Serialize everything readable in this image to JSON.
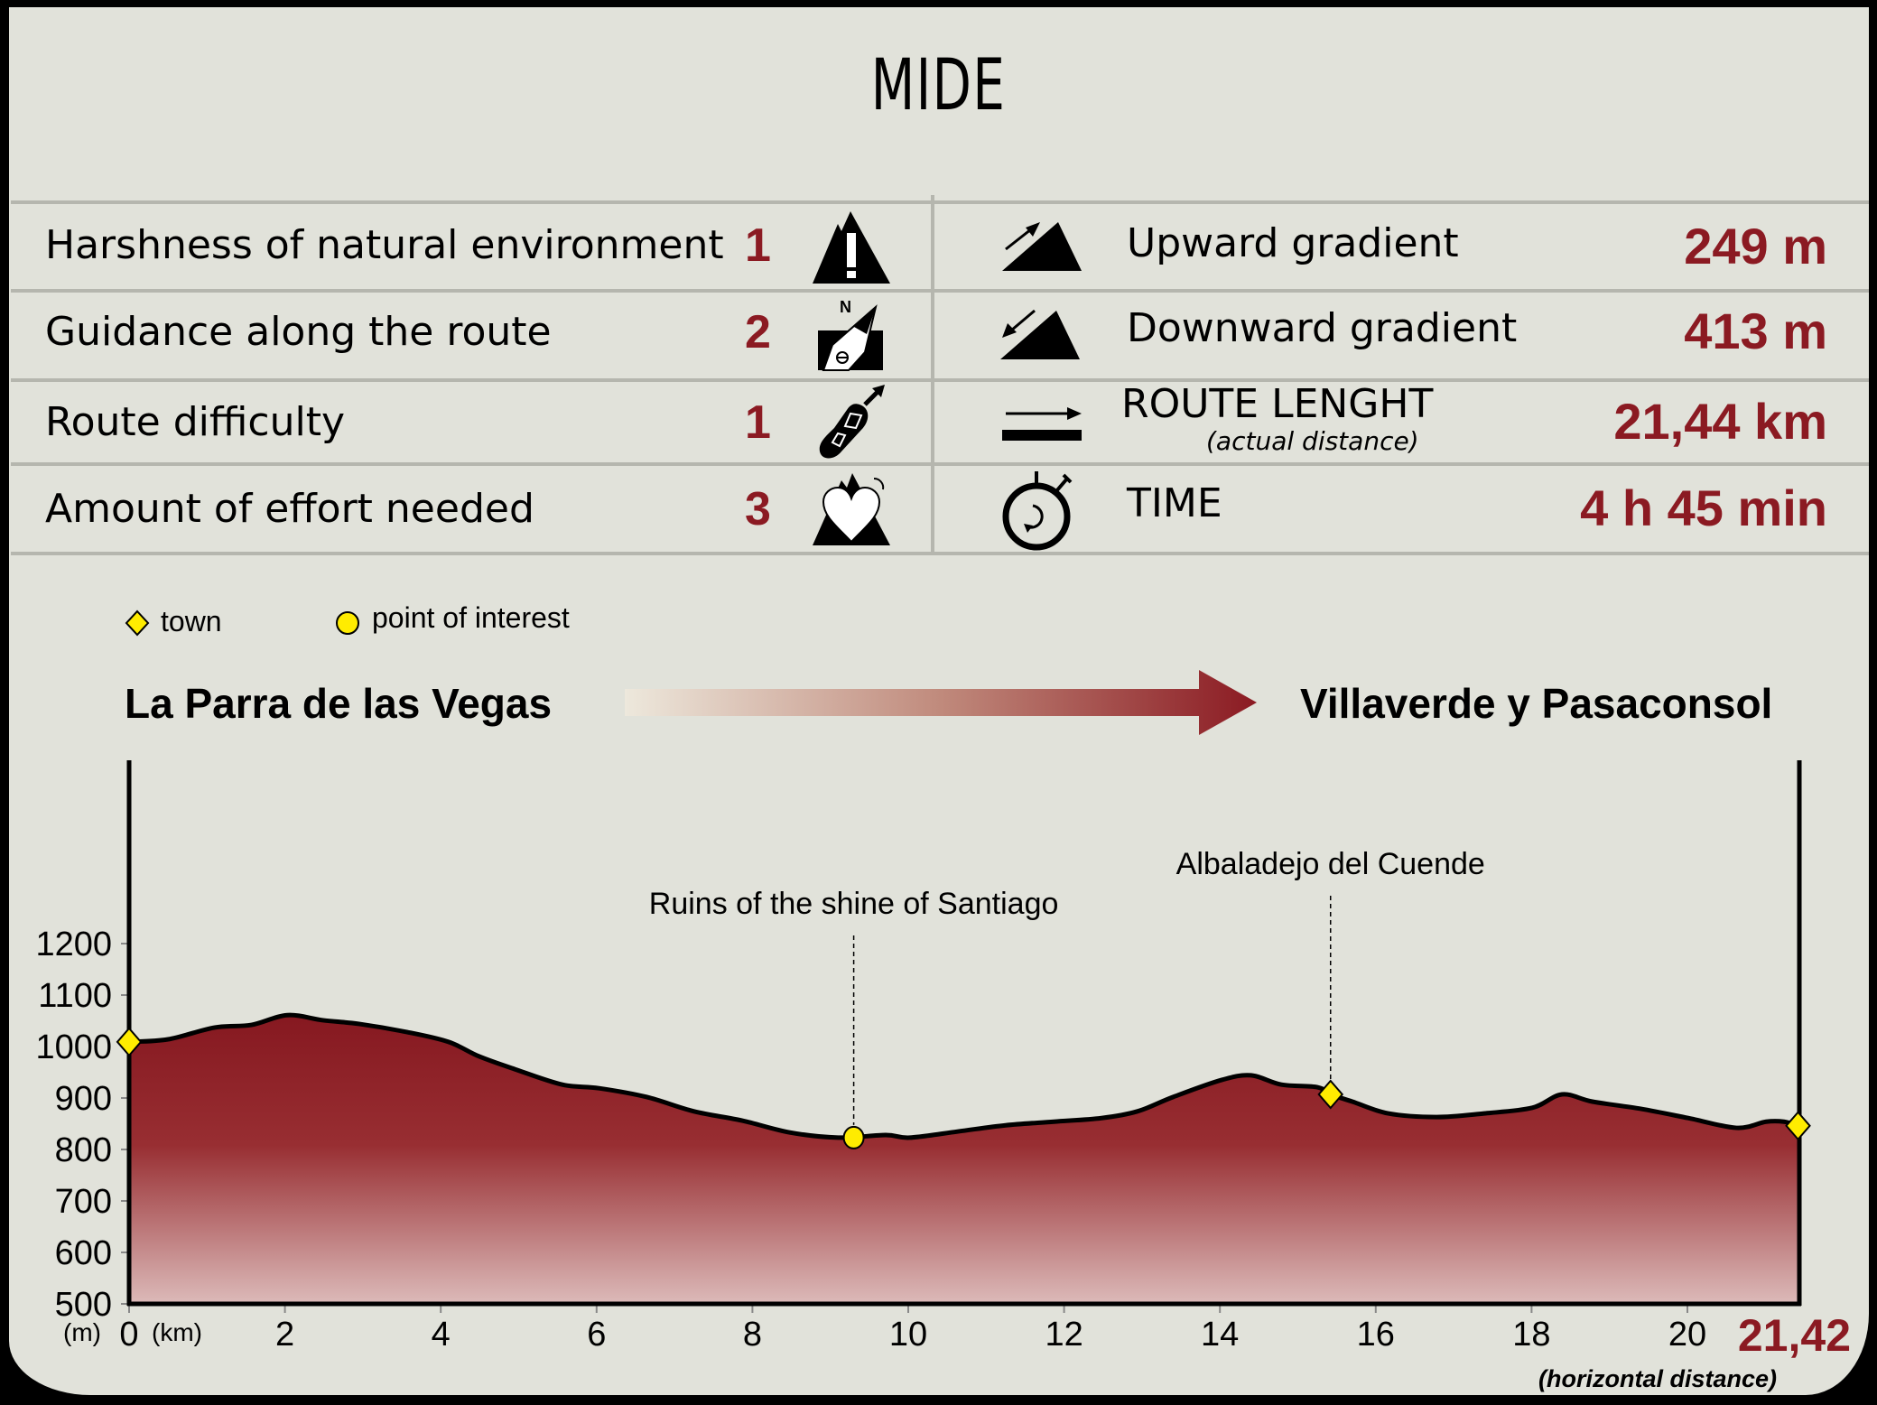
{
  "title": "MIDE",
  "mide_left": [
    {
      "label": "Harshness of natural environment",
      "score": "1",
      "icon": "mountain-warning-icon"
    },
    {
      "label": "Guidance along the route",
      "score": "2",
      "icon": "compass-north-icon"
    },
    {
      "label": "Route difficulty",
      "score": "1",
      "icon": "footprint-arrow-icon"
    },
    {
      "label": "Amount of effort needed",
      "score": "3",
      "icon": "heart-mountain-icon"
    }
  ],
  "mide_right": [
    {
      "label": "Upward gradient",
      "sublabel": "",
      "value": "249 m",
      "icon": "uphill-arrow-icon"
    },
    {
      "label": "Downward gradient",
      "sublabel": "",
      "value": "413 m",
      "icon": "downhill-arrow-icon"
    },
    {
      "label": "ROUTE LENGHT",
      "sublabel": "(actual distance)",
      "value": "21,44 km",
      "icon": "distance-arrow-icon"
    },
    {
      "label": "TIME",
      "sublabel": "",
      "value": "4 h 45 min",
      "icon": "stopwatch-icon"
    }
  ],
  "legend": {
    "town": "town",
    "poi": "point of interest"
  },
  "route": {
    "start": "La Parra de las Vegas",
    "end": "Villaverde y Pasaconsol"
  },
  "colors": {
    "accent": "#8b1a22",
    "background": "#e1e2da",
    "divider": "#b5b6ae",
    "marker": "#ffec00",
    "fill_top": "#861820",
    "fill_bottom": "#dcb9b8"
  },
  "chart_data": {
    "type": "area",
    "title": "Elevation profile",
    "xlabel": "(km)",
    "ylabel": "(m)",
    "x_end_label": "21,42",
    "x_end_caption": "(horizontal distance)",
    "xlim": [
      0,
      21.42
    ],
    "ylim": [
      500,
      1200
    ],
    "x_ticks": [
      0,
      2,
      4,
      6,
      8,
      10,
      12,
      14,
      16,
      18,
      20
    ],
    "y_ticks": [
      500,
      600,
      700,
      800,
      900,
      1000,
      1100,
      1200
    ],
    "grid": false,
    "legend_position": "top-left",
    "x": [
      0,
      0.5,
      1.1,
      1.57,
      2.03,
      2.49,
      2.95,
      3.57,
      4.1,
      4.49,
      4.95,
      5.56,
      6.03,
      6.64,
      7.25,
      7.87,
      8.48,
      9.1,
      9.71,
      10.02,
      10.64,
      11.25,
      11.87,
      12.48,
      12.94,
      13.4,
      14.02,
      14.4,
      14.79,
      15.25,
      15.42,
      15.7,
      16.16,
      16.78,
      17.39,
      18.01,
      18.39,
      18.78,
      19.4,
      20.01,
      20.63,
      21.01,
      21.24,
      21.42
    ],
    "series": [
      {
        "name": "elevation",
        "values": [
          1009,
          1014,
          1037,
          1042,
          1061,
          1051,
          1044,
          1028,
          1009,
          981,
          956,
          926,
          919,
          902,
          874,
          856,
          833,
          823,
          828,
          823,
          835,
          847,
          854,
          861,
          874,
          902,
          935,
          944,
          926,
          921,
          907,
          893,
          870,
          863,
          870,
          881,
          907,
          893,
          879,
          861,
          842,
          854,
          854,
          846
        ]
      }
    ],
    "markers": [
      {
        "type": "town",
        "name": "La Parra de las Vegas",
        "km": 0,
        "elevation": 1009,
        "label": ""
      },
      {
        "type": "poi",
        "name": "Ruins of the shine of Santiago",
        "km": 9.3,
        "elevation": 823,
        "label": "Ruins of the shine of Santiago"
      },
      {
        "type": "town",
        "name": "Albaladejo del Cuende",
        "km": 15.42,
        "elevation": 907,
        "label": "Albaladejo del Cuende"
      },
      {
        "type": "town",
        "name": "Villaverde y Pasaconsol",
        "km": 21.42,
        "elevation": 846,
        "label": ""
      }
    ]
  }
}
